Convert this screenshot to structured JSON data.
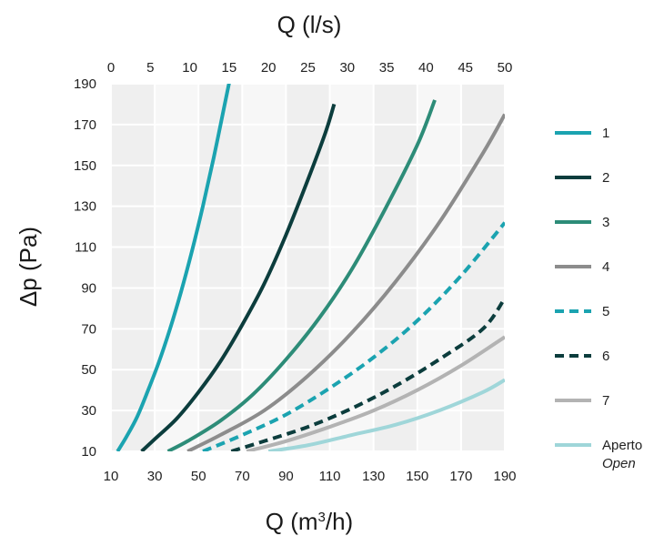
{
  "chart_data": {
    "type": "line",
    "title": "",
    "xlabel": "Q (m",
    "xlabel_sup": "3",
    "xlabel_tail": "/h)",
    "x2label": "Q (l/s)",
    "ylabel": "Δp (Pa)",
    "xlim": [
      10,
      190
    ],
    "ylim": [
      10,
      190
    ],
    "x2lim": [
      0,
      50
    ],
    "xticks": [
      10,
      30,
      50,
      70,
      90,
      110,
      130,
      150,
      170,
      190
    ],
    "x2ticks": [
      0,
      5,
      10,
      15,
      20,
      25,
      30,
      35,
      40,
      45,
      50
    ],
    "yticks": [
      10,
      30,
      50,
      70,
      90,
      110,
      130,
      150,
      170,
      190
    ],
    "grid": true,
    "legend_position": "right",
    "series": [
      {
        "name": "1",
        "color": "#1ba3b0",
        "dash": false,
        "x": [
          13,
          17,
          22,
          27,
          32,
          37,
          42,
          47,
          52,
          57,
          62,
          64.5
        ],
        "y": [
          10,
          17,
          27,
          40,
          54,
          70,
          88,
          108,
          130,
          154,
          180,
          193
        ]
      },
      {
        "name": "2",
        "color": "#0c3d3d",
        "dash": false,
        "x": [
          24,
          30,
          40,
          50,
          60,
          70,
          80,
          90,
          100,
          108,
          112
        ],
        "y": [
          10,
          16,
          26,
          39,
          54,
          72,
          92,
          116,
          143,
          166,
          180
        ]
      },
      {
        "name": "3",
        "color": "#2d8c78",
        "dash": false,
        "x": [
          36,
          45,
          60,
          75,
          90,
          105,
          120,
          135,
          150,
          158
        ],
        "y": [
          10,
          15,
          25,
          38,
          55,
          75,
          99,
          128,
          160,
          182
        ]
      },
      {
        "name": "4",
        "color": "#8c8c8c",
        "dash": false,
        "x": [
          45,
          60,
          80,
          100,
          120,
          140,
          160,
          180,
          190
        ],
        "y": [
          10,
          18,
          30,
          47,
          68,
          93,
          122,
          156,
          175
        ]
      },
      {
        "name": "5",
        "color": "#1ba3b0",
        "dash": true,
        "x": [
          52,
          70,
          90,
          110,
          130,
          150,
          170,
          190
        ],
        "y": [
          10,
          18,
          28,
          41,
          56,
          74,
          96,
          122
        ]
      },
      {
        "name": "6",
        "color": "#0c3d3d",
        "dash": true,
        "x": [
          65,
          80,
          100,
          120,
          140,
          160,
          180,
          190
        ],
        "y": [
          10,
          15,
          22,
          31,
          42,
          55,
          70,
          85
        ]
      },
      {
        "name": "7",
        "color": "#b3b3b3",
        "dash": false,
        "x": [
          72,
          90,
          110,
          130,
          150,
          170,
          190
        ],
        "y": [
          10,
          15,
          22,
          30,
          40,
          52,
          66
        ]
      },
      {
        "name": "Aperto",
        "name_sub": "Open",
        "color": "#9fd6d9",
        "dash": false,
        "x": [
          82,
          100,
          120,
          140,
          160,
          180,
          190
        ],
        "y": [
          10,
          13,
          18,
          23,
          30,
          39,
          45
        ]
      }
    ]
  }
}
